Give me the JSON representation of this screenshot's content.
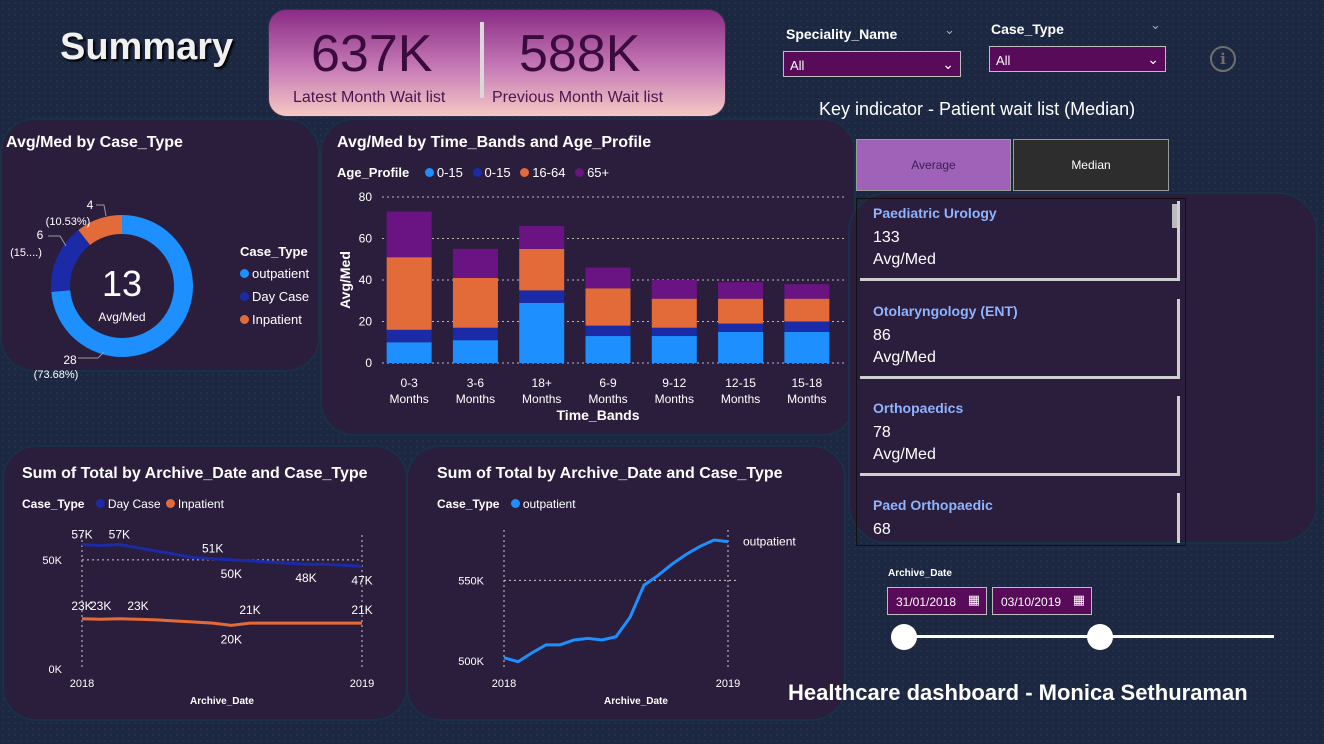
{
  "page": {
    "title": "Summary",
    "footer": "Healthcare dashboard - Monica Sethuraman",
    "info_icon": "info-icon"
  },
  "kpis": [
    {
      "value": "637K",
      "label": "Latest Month Wait list"
    },
    {
      "value": "588K",
      "label": "Previous Month Wait list"
    }
  ],
  "slicers": {
    "speciality": {
      "label": "Speciality_Name",
      "value": "All"
    },
    "case_type": {
      "label": "Case_Type",
      "value": "All"
    }
  },
  "key_indicator": {
    "title": "Key indicator - Patient wait list (Median)",
    "buttons": [
      "Average",
      "Median"
    ],
    "cards": [
      {
        "name": "Paediatric Urology",
        "value": "133",
        "sub": "Avg/Med"
      },
      {
        "name": "Otolaryngology (ENT)",
        "value": "86",
        "sub": "Avg/Med"
      },
      {
        "name": "Orthopaedics",
        "value": "78",
        "sub": "Avg/Med"
      },
      {
        "name": "Paed Orthopaedic",
        "value": "68",
        "sub": ""
      }
    ]
  },
  "archive_date": {
    "label": "Archive_Date",
    "start": "31/01/2018",
    "end": "03/10/2019"
  },
  "colors": {
    "outpatient": "#1e8fff",
    "day_case": "#1b2aa6",
    "inpatient": "#e36b3a",
    "age_65": "#6a1484",
    "kpi_text": "#3a0b3d"
  },
  "chart_data": [
    {
      "type": "pie",
      "title": "Avg/Med by Case_Type",
      "legend_title": "Case_Type",
      "center_value": "13",
      "center_label": "Avg/Med",
      "slices": [
        {
          "name": "outpatient",
          "value": 28,
          "label": "28",
          "pct": "(73.68%)"
        },
        {
          "name": "Day Case",
          "value": 6,
          "label": "6",
          "pct": "(15....)"
        },
        {
          "name": "Inpatient",
          "value": 4,
          "label": "4",
          "pct": "(10.53%)"
        }
      ]
    },
    {
      "type": "bar",
      "title": "Avg/Med by Time_Bands and Age_Profile",
      "legend_title": "Age_Profile",
      "xlabel": "Time_Bands",
      "ylabel": "Avg/Med",
      "ylim": [
        0,
        80
      ],
      "yticks": [
        "0",
        "20",
        "40",
        "60",
        "80"
      ],
      "categories": [
        [
          "0-3",
          "Months"
        ],
        [
          "3-6",
          "Months"
        ],
        [
          "18+",
          "Months"
        ],
        [
          "6-9",
          "Months"
        ],
        [
          "9-12",
          "Months"
        ],
        [
          "12-15",
          "Months"
        ],
        [
          "15-18",
          "Months"
        ]
      ],
      "series": [
        {
          "name": "0-15",
          "values": [
            10,
            11,
            29,
            13,
            13,
            15,
            15
          ]
        },
        {
          "name": "0-15",
          "values": [
            6,
            6,
            6,
            5,
            4,
            4,
            5
          ]
        },
        {
          "name": "16-64",
          "values": [
            35,
            24,
            20,
            18,
            14,
            12,
            11
          ]
        },
        {
          "name": "65+",
          "values": [
            22,
            14,
            11,
            10,
            9,
            8,
            7
          ]
        }
      ]
    },
    {
      "type": "line",
      "title": "Sum of Total by Archive_Date and Case_Type",
      "legend_title": "Case_Type",
      "xlabel": "Archive_Date",
      "x_ticks": [
        "2018",
        "2019"
      ],
      "y_ticks": [
        "0K",
        "50K"
      ],
      "ylim": [
        0,
        60000
      ],
      "series": [
        {
          "name": "Day Case",
          "values": [
            57000,
            56500,
            57000,
            55500,
            54000,
            52500,
            51000,
            50500,
            50000,
            49500,
            49000,
            48500,
            48000,
            48000,
            47500,
            47000
          ],
          "labels": [
            {
              "i": 0,
              "text": "57K"
            },
            {
              "i": 2,
              "text": "57K"
            },
            {
              "i": 7,
              "text": "51K"
            },
            {
              "i": 8,
              "text": "50K"
            },
            {
              "i": 12,
              "text": "48K"
            },
            {
              "i": 15,
              "text": "47K"
            }
          ]
        },
        {
          "name": "Inpatient",
          "values": [
            23000,
            22800,
            23000,
            22800,
            22500,
            22000,
            21500,
            21000,
            20000,
            21000,
            21000,
            21000,
            21000,
            21000,
            21000,
            21000
          ],
          "labels": [
            {
              "i": 0,
              "text": "23K"
            },
            {
              "i": 1,
              "text": "23K"
            },
            {
              "i": 3,
              "text": "23K"
            },
            {
              "i": 8,
              "text": "20K"
            },
            {
              "i": 9,
              "text": "21K"
            },
            {
              "i": 15,
              "text": "21K"
            }
          ]
        }
      ]
    },
    {
      "type": "line",
      "title": "Sum of Total by Archive_Date and Case_Type",
      "legend_title": "Case_Type",
      "xlabel": "Archive_Date",
      "x_ticks": [
        "2018",
        "2019"
      ],
      "y_ticks": [
        "500K",
        "550K"
      ],
      "ylim": [
        495000,
        575000
      ],
      "series": [
        {
          "name": "outpatient",
          "end_label": "outpatient",
          "values": [
            502000,
            499500,
            505000,
            510000,
            510000,
            513000,
            514000,
            513000,
            515000,
            527000,
            547000,
            553000,
            560000,
            566000,
            571000,
            575000,
            574000
          ]
        }
      ]
    }
  ]
}
